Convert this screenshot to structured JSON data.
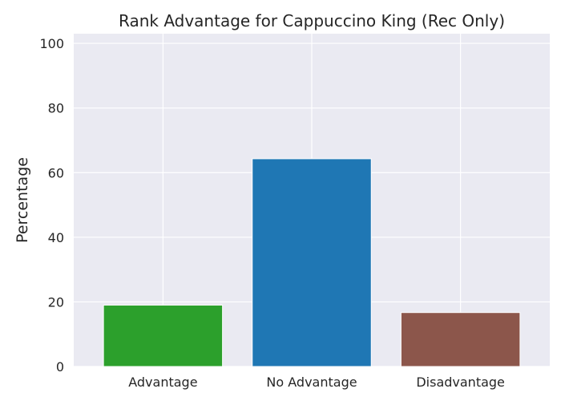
{
  "chart_data": {
    "type": "bar",
    "title": "Rank Advantage for Cappuccino King (Rec Only)",
    "xlabel": "",
    "ylabel": "Percentage",
    "categories": [
      "Advantage",
      "No Advantage",
      "Disadvantage"
    ],
    "values": [
      19.0,
      64.3,
      16.7
    ],
    "colors": [
      "#2ca02c",
      "#1f77b4",
      "#8c564b"
    ],
    "ylim": [
      0,
      103
    ],
    "yticks": [
      0,
      20,
      40,
      60,
      80,
      100
    ],
    "grid": true,
    "background": "#eaeaf2"
  }
}
